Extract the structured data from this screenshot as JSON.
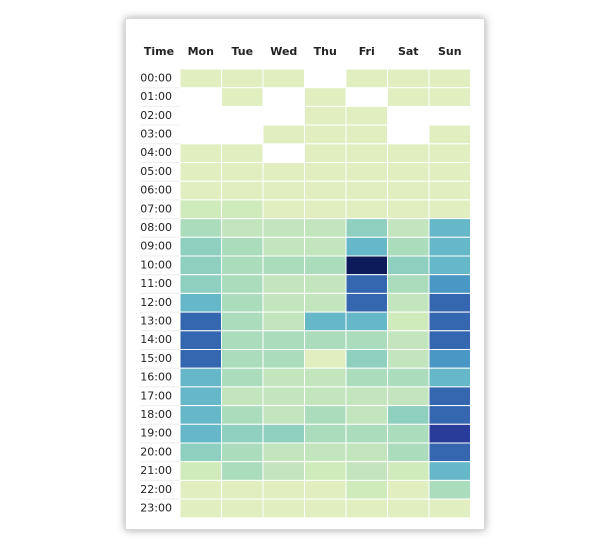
{
  "chart_data": {
    "type": "heatmap",
    "row_header": "Time",
    "x": [
      "Mon",
      "Tue",
      "Wed",
      "Thu",
      "Fri",
      "Sat",
      "Sun"
    ],
    "y": [
      "00:00",
      "01:00",
      "02:00",
      "03:00",
      "04:00",
      "05:00",
      "06:00",
      "07:00",
      "08:00",
      "09:00",
      "10:00",
      "11:00",
      "12:00",
      "13:00",
      "14:00",
      "15:00",
      "16:00",
      "17:00",
      "18:00",
      "19:00",
      "20:00",
      "21:00",
      "22:00",
      "23:00"
    ],
    "values": [
      [
        1,
        1,
        1,
        null,
        1,
        1,
        1
      ],
      [
        null,
        1,
        null,
        1,
        null,
        1,
        1
      ],
      [
        null,
        null,
        null,
        1,
        1,
        null,
        null
      ],
      [
        null,
        null,
        1,
        1,
        1,
        null,
        1
      ],
      [
        1,
        1,
        null,
        1,
        1,
        1,
        1
      ],
      [
        1,
        1,
        1,
        1,
        1,
        1,
        1
      ],
      [
        1,
        1,
        1,
        1,
        1,
        1,
        1
      ],
      [
        2,
        2,
        1,
        1,
        1,
        1,
        1
      ],
      [
        4,
        3,
        3,
        3,
        5,
        3,
        6
      ],
      [
        5,
        4,
        3,
        3,
        6,
        4,
        6
      ],
      [
        5,
        4,
        4,
        4,
        10,
        5,
        6
      ],
      [
        5,
        4,
        3,
        3,
        8,
        4,
        7
      ],
      [
        6,
        4,
        3,
        3,
        8,
        3,
        8
      ],
      [
        8,
        4,
        3,
        6,
        6,
        2,
        8
      ],
      [
        8,
        4,
        4,
        4,
        4,
        3,
        8
      ],
      [
        8,
        4,
        4,
        1,
        5,
        3,
        7
      ],
      [
        6,
        4,
        3,
        3,
        4,
        4,
        6
      ],
      [
        6,
        3,
        3,
        3,
        3,
        3,
        8
      ],
      [
        6,
        4,
        3,
        4,
        3,
        5,
        8
      ],
      [
        6,
        5,
        5,
        4,
        4,
        4,
        9
      ],
      [
        5,
        4,
        3,
        3,
        3,
        4,
        8
      ],
      [
        2,
        4,
        3,
        2,
        3,
        2,
        6
      ],
      [
        1,
        1,
        1,
        1,
        2,
        1,
        4
      ],
      [
        1,
        1,
        1,
        1,
        1,
        1,
        1
      ]
    ],
    "zlim": [
      0,
      10
    ],
    "colorscale": [
      "#ffffff",
      "#e1efc0",
      "#d0ebbb",
      "#c2e5bd",
      "#abdcbb",
      "#8fcfc0",
      "#66b8c8",
      "#4a96c4",
      "#3566b0",
      "#2a3c9a",
      "#0d1b5a"
    ]
  }
}
